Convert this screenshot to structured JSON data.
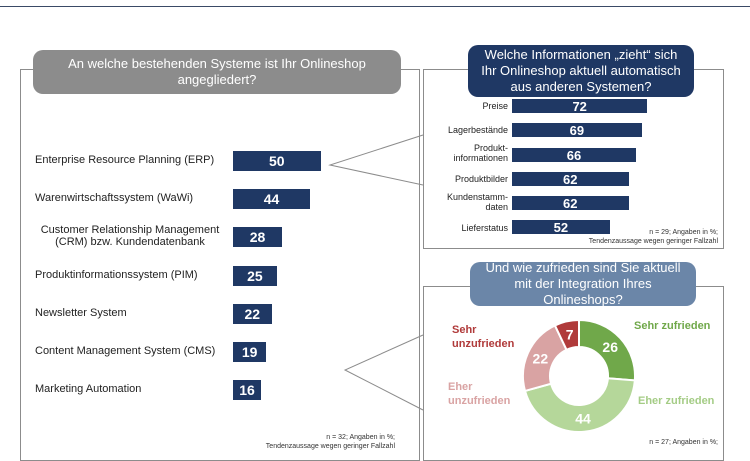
{
  "left_panel": {
    "question": "An welche bestehenden Systeme ist Ihr Onlineshop angegliedert?",
    "note_line1": "n = 32; Angaben in %;",
    "note_line2": "Tendenzaussage wegen geringer Fallzahl"
  },
  "top_right_panel": {
    "question": "Welche Informationen „zieht“ sich Ihr Onlineshop aktuell automatisch aus anderen Systemen?",
    "note_line1": "n = 29; Angaben in %;",
    "note_line2": "Tendenzaussage wegen geringer Fallzahl"
  },
  "bottom_right_panel": {
    "question": "Und wie zufrieden sind Sie aktuell mit der Integration Ihres Onlineshops?",
    "note_line1": "n = 27; Angaben in %;"
  },
  "colors": {
    "bar": "#1f3864",
    "left_bubble": "#8c8c8c",
    "right_bubble": "#1f3864",
    "bottom_bubble": "#6b86a8",
    "sehr_zufrieden": "#70a84a",
    "eher_zufrieden": "#b5d79a",
    "eher_unzufrieden": "#d9a3a3",
    "sehr_unzufrieden": "#b03a3a"
  },
  "chart_data": [
    {
      "type": "bar",
      "orientation": "horizontal",
      "categories": [
        "Enterprise Resource Planning (ERP)",
        "Warenwirtschaftssystem (WaWi)",
        "Customer Relationship Management (CRM) bzw. Kundendatenbank",
        "Produktinformationssystem (PIM)",
        "Newsletter System",
        "Content Management System (CMS)",
        "Marketing Automation"
      ],
      "category_lines": [
        [
          "Enterprise Resource Planning (ERP)"
        ],
        [
          "Warenwirtschaftssystem (WaWi)"
        ],
        [
          "Customer Relationship Management",
          "(CRM) bzw. Kundendatenbank"
        ],
        [
          "Produktinformationssystem (PIM)"
        ],
        [
          "Newsletter System"
        ],
        [
          "Content Management System (CMS)"
        ],
        [
          "Marketing Automation"
        ]
      ],
      "values": [
        50,
        44,
        28,
        25,
        22,
        19,
        16
      ]
    },
    {
      "type": "bar",
      "orientation": "horizontal",
      "categories": [
        "Preise",
        "Lagerbestände",
        "Produkt-informationen",
        "Produktbilder",
        "Kundenstamm-daten",
        "Lieferstatus"
      ],
      "category_lines": [
        [
          "Preise"
        ],
        [
          "Lagerbestände"
        ],
        [
          "Produkt-",
          "informationen"
        ],
        [
          "Produktbilder"
        ],
        [
          "Kundenstamm-",
          "daten"
        ],
        [
          "Lieferstatus"
        ]
      ],
      "values": [
        72,
        69,
        66,
        62,
        62,
        52
      ]
    },
    {
      "type": "pie",
      "donut": true,
      "categories": [
        "Sehr zufrieden",
        "Eher zufrieden",
        "Eher unzufrieden",
        "Sehr unzufrieden"
      ],
      "category_lines": [
        [
          "Sehr zufrieden"
        ],
        [
          "Eher zufrieden"
        ],
        [
          "Eher",
          "unzufrieden"
        ],
        [
          "Sehr",
          "unzufrieden"
        ]
      ],
      "values": [
        26,
        44,
        22,
        7
      ]
    }
  ]
}
